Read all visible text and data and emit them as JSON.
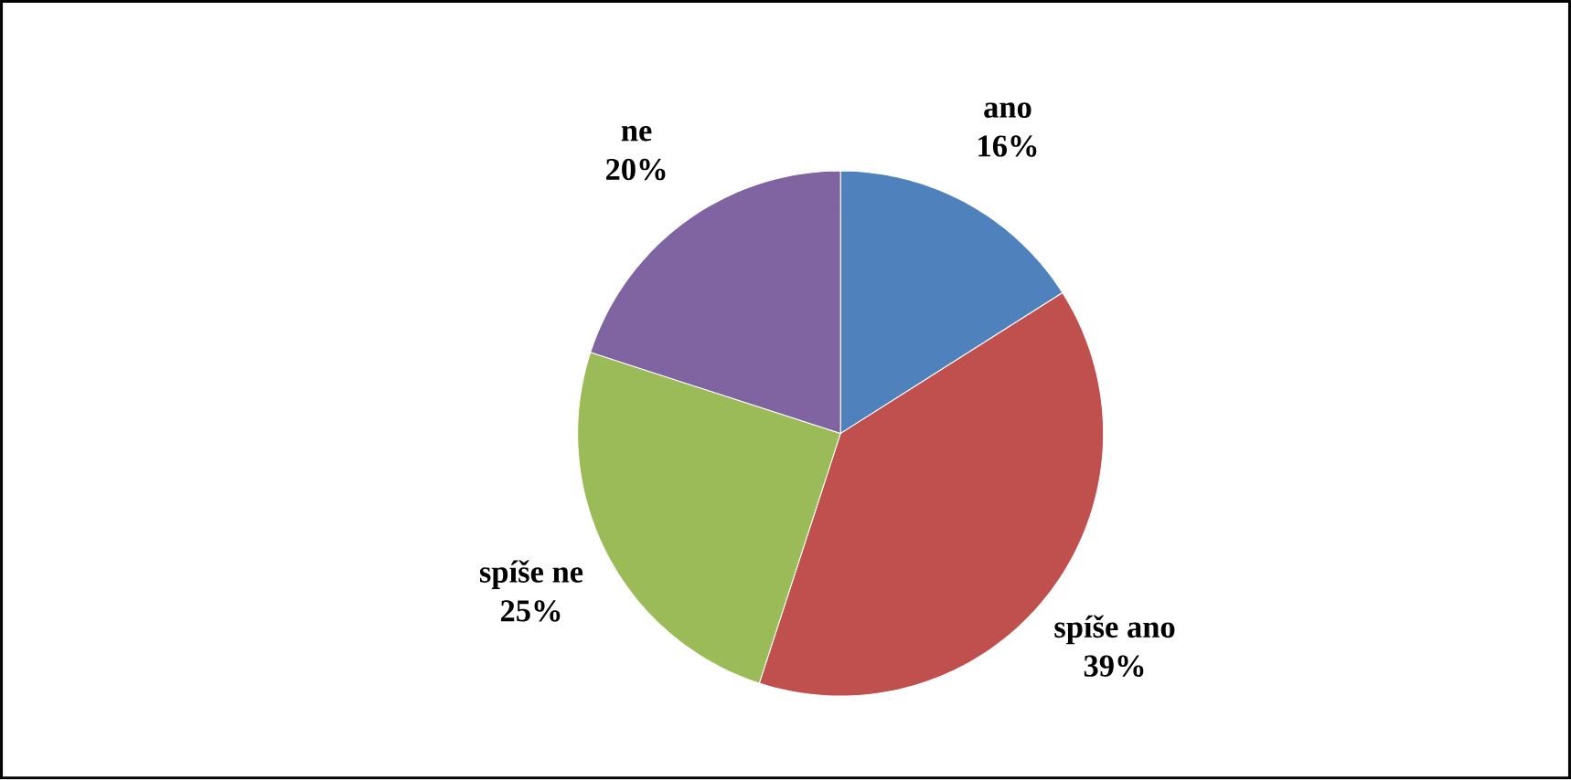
{
  "chart_data": {
    "type": "pie",
    "categories": [
      "ano",
      "spíše ano",
      "spíše ne",
      "ne"
    ],
    "values": [
      16,
      39,
      25,
      20
    ],
    "value_labels": [
      "16%",
      "39%",
      "25%",
      "20%"
    ],
    "colors": [
      "#4f81bd",
      "#c0504d",
      "#9bbb59",
      "#8064a2"
    ]
  }
}
